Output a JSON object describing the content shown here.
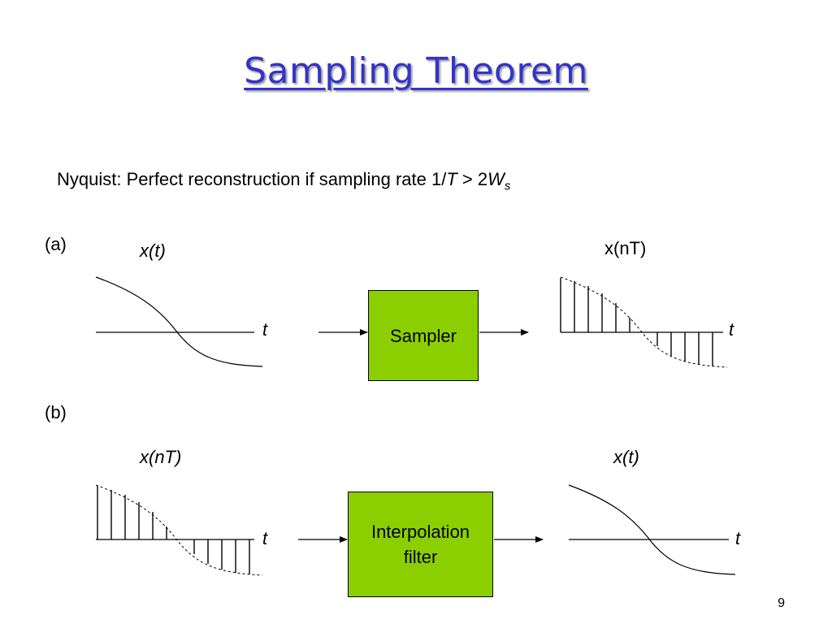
{
  "slide": {
    "title": "Sampling Theorem",
    "title_color": "#3333cc",
    "nyquist": {
      "prefix": "Nyquist:  Perfect reconstruction if sampling rate 1/",
      "T": "T",
      "gt": " > 2",
      "W": "W",
      "sub": "s"
    },
    "page_number": "9"
  },
  "part_a": {
    "label": "(a)",
    "input_label": "x(t)",
    "input_axis": "t",
    "block_label": "Sampler",
    "output_label": "x(nT)",
    "output_axis": "t",
    "block_color": "#8ccf00"
  },
  "part_b": {
    "label": "(b)",
    "input_label": "x(nT)",
    "input_axis": "t",
    "block_label_line1": "Interpolation",
    "block_label_line2": "filter",
    "output_label": "x(t)",
    "output_axis": "t",
    "block_color": "#8ccf00"
  }
}
